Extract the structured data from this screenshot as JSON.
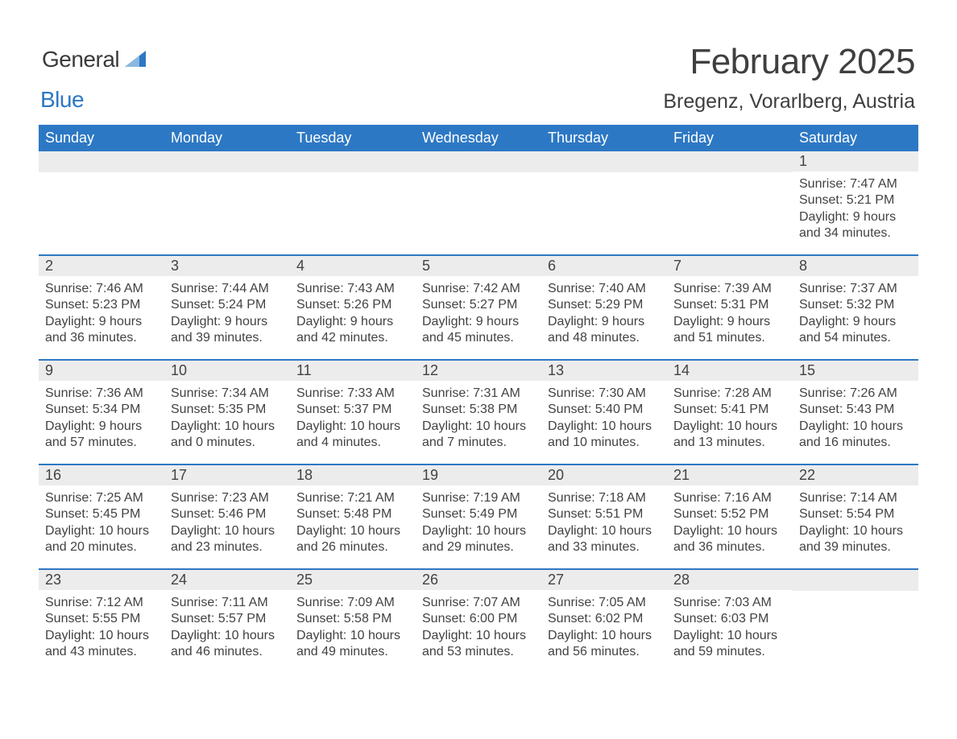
{
  "brand": {
    "word1": "General",
    "word2": "Blue",
    "accent": "#2d78c4"
  },
  "title": "February 2025",
  "location": "Bregenz, Vorarlberg, Austria",
  "colors": {
    "header_bg": "#2d78c4",
    "header_fg": "#ffffff",
    "daynum_bg": "#ececec",
    "text": "#424242",
    "row_border": "#2d78c4",
    "page_bg": "#ffffff"
  },
  "typography": {
    "title_fontsize": 44,
    "location_fontsize": 25,
    "header_fontsize": 18,
    "daynum_fontsize": 18,
    "body_fontsize": 16
  },
  "layout": {
    "columns": 7,
    "rows": 5,
    "start_weekday": "Sunday"
  },
  "weekdays": [
    "Sunday",
    "Monday",
    "Tuesday",
    "Wednesday",
    "Thursday",
    "Friday",
    "Saturday"
  ],
  "weeks": [
    [
      null,
      null,
      null,
      null,
      null,
      null,
      {
        "n": "1",
        "sunrise": "7:47 AM",
        "sunset": "5:21 PM",
        "daylight": "9 hours and 34 minutes."
      }
    ],
    [
      {
        "n": "2",
        "sunrise": "7:46 AM",
        "sunset": "5:23 PM",
        "daylight": "9 hours and 36 minutes."
      },
      {
        "n": "3",
        "sunrise": "7:44 AM",
        "sunset": "5:24 PM",
        "daylight": "9 hours and 39 minutes."
      },
      {
        "n": "4",
        "sunrise": "7:43 AM",
        "sunset": "5:26 PM",
        "daylight": "9 hours and 42 minutes."
      },
      {
        "n": "5",
        "sunrise": "7:42 AM",
        "sunset": "5:27 PM",
        "daylight": "9 hours and 45 minutes."
      },
      {
        "n": "6",
        "sunrise": "7:40 AM",
        "sunset": "5:29 PM",
        "daylight": "9 hours and 48 minutes."
      },
      {
        "n": "7",
        "sunrise": "7:39 AM",
        "sunset": "5:31 PM",
        "daylight": "9 hours and 51 minutes."
      },
      {
        "n": "8",
        "sunrise": "7:37 AM",
        "sunset": "5:32 PM",
        "daylight": "9 hours and 54 minutes."
      }
    ],
    [
      {
        "n": "9",
        "sunrise": "7:36 AM",
        "sunset": "5:34 PM",
        "daylight": "9 hours and 57 minutes."
      },
      {
        "n": "10",
        "sunrise": "7:34 AM",
        "sunset": "5:35 PM",
        "daylight": "10 hours and 0 minutes."
      },
      {
        "n": "11",
        "sunrise": "7:33 AM",
        "sunset": "5:37 PM",
        "daylight": "10 hours and 4 minutes."
      },
      {
        "n": "12",
        "sunrise": "7:31 AM",
        "sunset": "5:38 PM",
        "daylight": "10 hours and 7 minutes."
      },
      {
        "n": "13",
        "sunrise": "7:30 AM",
        "sunset": "5:40 PM",
        "daylight": "10 hours and 10 minutes."
      },
      {
        "n": "14",
        "sunrise": "7:28 AM",
        "sunset": "5:41 PM",
        "daylight": "10 hours and 13 minutes."
      },
      {
        "n": "15",
        "sunrise": "7:26 AM",
        "sunset": "5:43 PM",
        "daylight": "10 hours and 16 minutes."
      }
    ],
    [
      {
        "n": "16",
        "sunrise": "7:25 AM",
        "sunset": "5:45 PM",
        "daylight": "10 hours and 20 minutes."
      },
      {
        "n": "17",
        "sunrise": "7:23 AM",
        "sunset": "5:46 PM",
        "daylight": "10 hours and 23 minutes."
      },
      {
        "n": "18",
        "sunrise": "7:21 AM",
        "sunset": "5:48 PM",
        "daylight": "10 hours and 26 minutes."
      },
      {
        "n": "19",
        "sunrise": "7:19 AM",
        "sunset": "5:49 PM",
        "daylight": "10 hours and 29 minutes."
      },
      {
        "n": "20",
        "sunrise": "7:18 AM",
        "sunset": "5:51 PM",
        "daylight": "10 hours and 33 minutes."
      },
      {
        "n": "21",
        "sunrise": "7:16 AM",
        "sunset": "5:52 PM",
        "daylight": "10 hours and 36 minutes."
      },
      {
        "n": "22",
        "sunrise": "7:14 AM",
        "sunset": "5:54 PM",
        "daylight": "10 hours and 39 minutes."
      }
    ],
    [
      {
        "n": "23",
        "sunrise": "7:12 AM",
        "sunset": "5:55 PM",
        "daylight": "10 hours and 43 minutes."
      },
      {
        "n": "24",
        "sunrise": "7:11 AM",
        "sunset": "5:57 PM",
        "daylight": "10 hours and 46 minutes."
      },
      {
        "n": "25",
        "sunrise": "7:09 AM",
        "sunset": "5:58 PM",
        "daylight": "10 hours and 49 minutes."
      },
      {
        "n": "26",
        "sunrise": "7:07 AM",
        "sunset": "6:00 PM",
        "daylight": "10 hours and 53 minutes."
      },
      {
        "n": "27",
        "sunrise": "7:05 AM",
        "sunset": "6:02 PM",
        "daylight": "10 hours and 56 minutes."
      },
      {
        "n": "28",
        "sunrise": "7:03 AM",
        "sunset": "6:03 PM",
        "daylight": "10 hours and 59 minutes."
      },
      null
    ]
  ],
  "labels": {
    "sunrise": "Sunrise",
    "sunset": "Sunset",
    "daylight": "Daylight"
  }
}
